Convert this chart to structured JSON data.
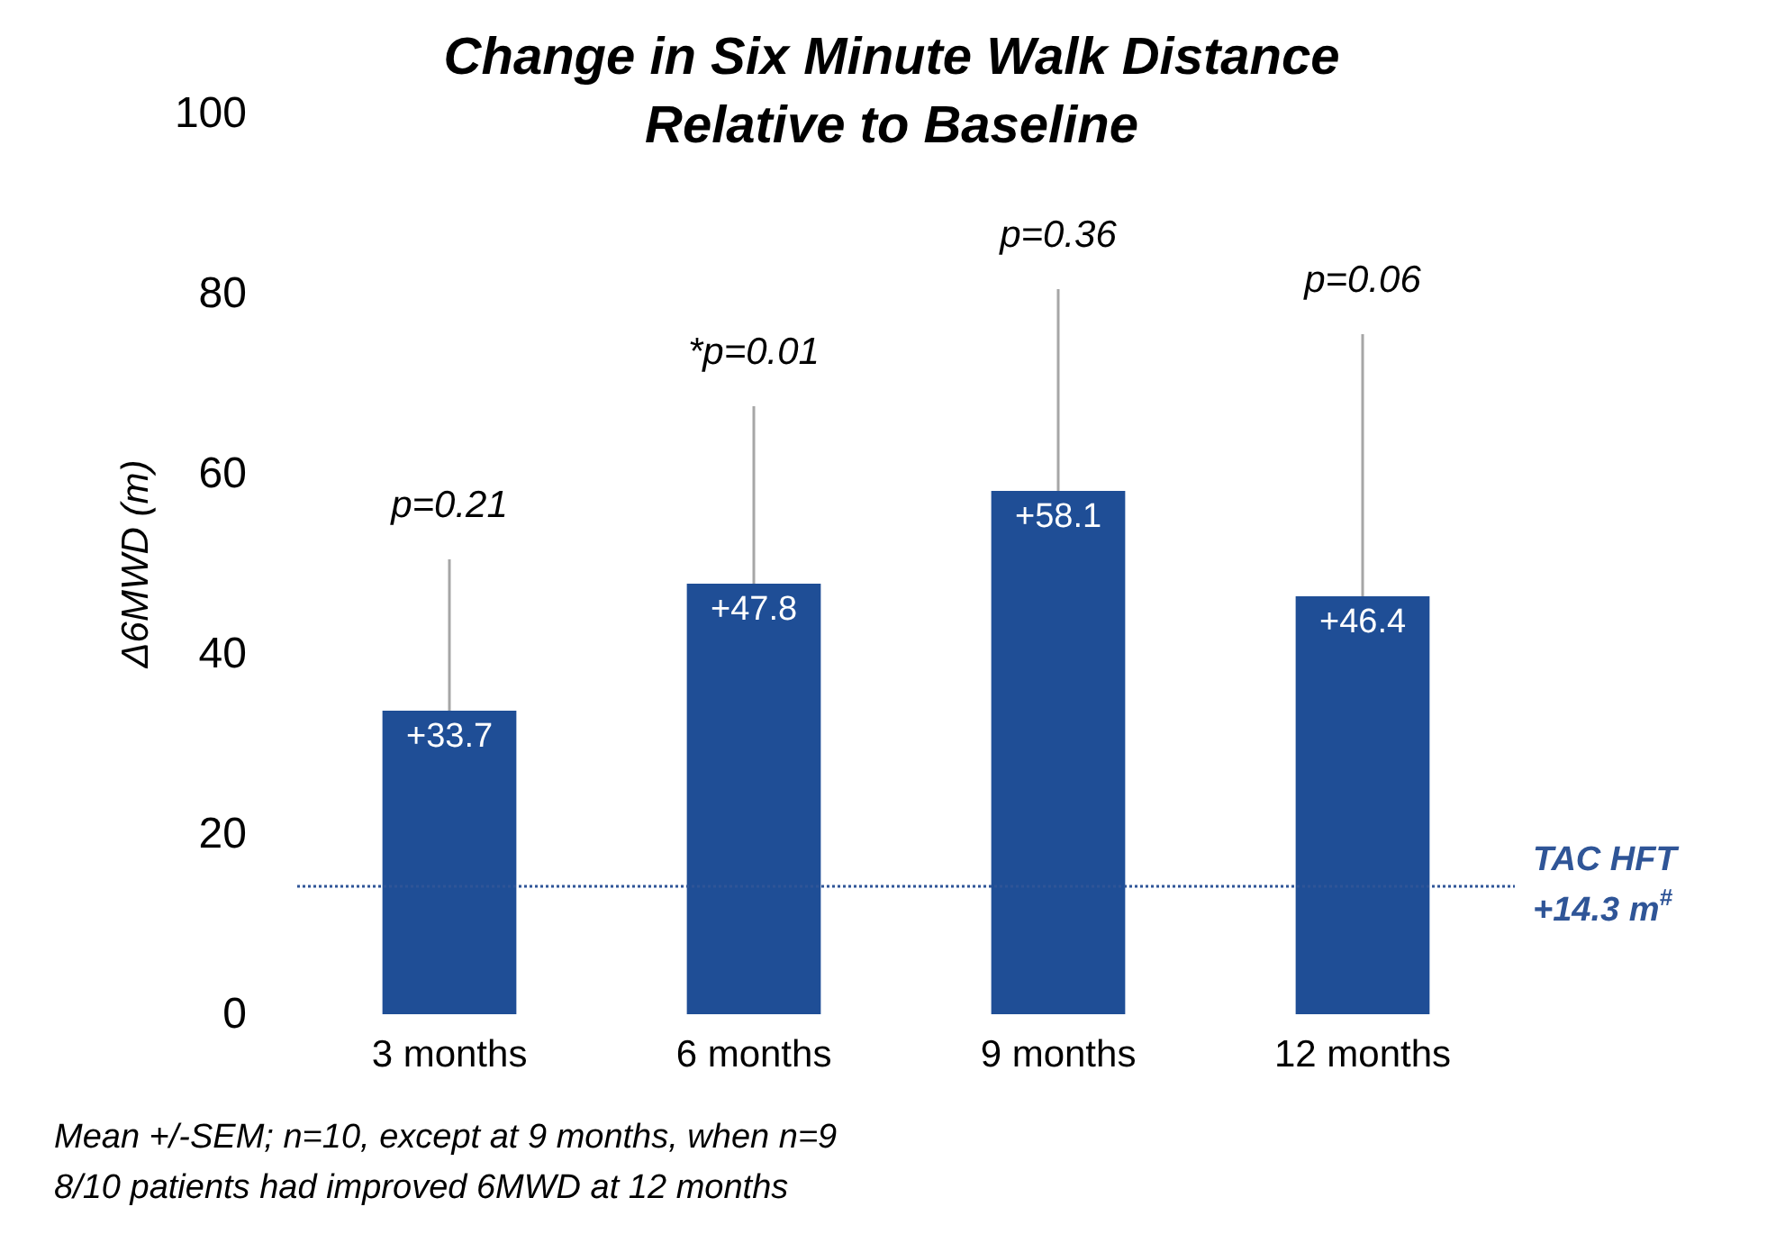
{
  "chart_data": {
    "type": "bar",
    "title": "Change in Six Minute Walk Distance\nRelative to Baseline",
    "ylabel": "Δ6MWD (m)",
    "categories": [
      "3 months",
      "6 months",
      "9 months",
      "12 months"
    ],
    "values": [
      33.7,
      47.8,
      58.1,
      46.4
    ],
    "value_labels": [
      "+33.7",
      "+47.8",
      "+58.1",
      "+46.4"
    ],
    "errors": [
      [
        33.7,
        50.5
      ],
      [
        47.8,
        67.5
      ],
      [
        58.1,
        80.5
      ],
      [
        46.4,
        75.5
      ]
    ],
    "color": "#1f4e96",
    "ylim": [
      0,
      100
    ],
    "yticks": [
      0,
      20,
      40,
      60,
      80,
      100
    ],
    "grid": false,
    "ref_lines": [
      {
        "axis": "y",
        "value": 14.3,
        "label": "TAC HFT\n+14.3 m$^{#}$",
        "color": "#2f5597",
        "line_style": "dotted"
      }
    ],
    "annotations": [
      "p=0.21",
      "*p=0.01",
      "p=0.36",
      "p=0.06",
      "Mean +/-SEM; n=10, except at 9 months, when n=9",
      "8/10 patients had improved 6MWD at 12 months"
    ]
  }
}
